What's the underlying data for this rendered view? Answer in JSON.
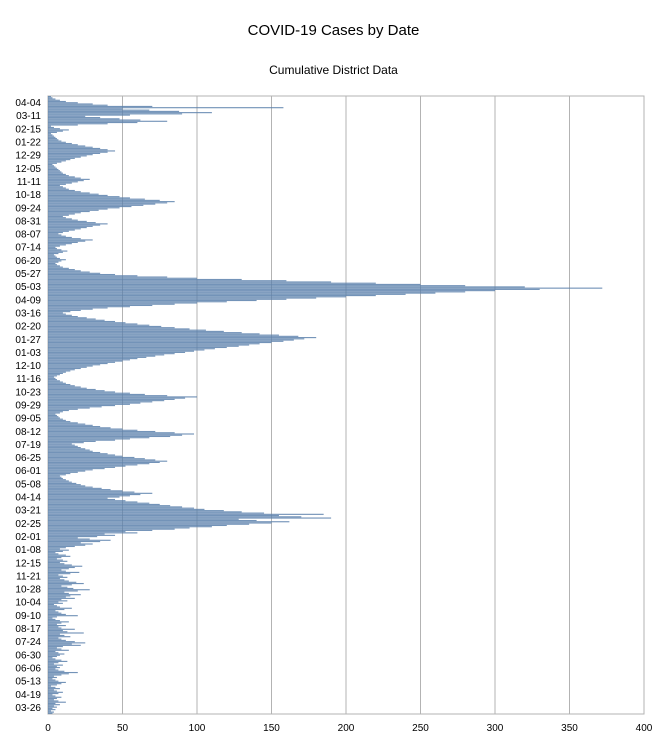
{
  "chart_data": {
    "type": "bar",
    "orientation": "horizontal",
    "title": "COVID-19 Cases by Date",
    "subtitle": "Cumulative District Data",
    "xlabel": "",
    "ylabel": "",
    "xlim": [
      0,
      400
    ],
    "x_ticks": [
      0,
      50,
      100,
      150,
      200,
      250,
      300,
      350,
      400
    ],
    "category_ticks": [
      "04-04",
      "03-11",
      "02-15",
      "01-22",
      "12-29",
      "12-05",
      "11-11",
      "10-18",
      "09-24",
      "08-31",
      "08-07",
      "07-14",
      "06-20",
      "05-27",
      "05-03",
      "04-09",
      "03-16",
      "02-20",
      "01-27",
      "01-03",
      "12-10",
      "11-16",
      "10-23",
      "09-29",
      "09-05",
      "08-12",
      "07-19",
      "06-25",
      "06-01",
      "05-08",
      "04-14",
      "03-21",
      "02-25",
      "02-01",
      "01-08",
      "12-15",
      "11-21",
      "10-28",
      "10-04",
      "09-10",
      "08-17",
      "07-24",
      "06-30",
      "06-06",
      "05-13",
      "04-19",
      "03-26"
    ],
    "grid": "vertical",
    "bar_color": "#5b80ac",
    "series": [
      {
        "values": [
          3,
          4,
          2,
          5,
          3,
          6,
          4,
          8,
          5,
          12,
          7,
          4,
          6,
          9,
          5,
          3,
          7,
          10,
          6,
          4,
          8,
          5,
          2,
          6,
          9,
          12,
          7,
          5,
          3,
          6,
          4,
          9,
          14,
          20,
          11,
          7,
          5,
          8,
          6,
          10,
          4,
          7,
          13,
          9,
          5,
          3,
          6,
          8,
          11,
          7,
          5,
          14,
          9,
          6,
          10,
          22,
          16,
          25,
          18,
          12,
          9,
          7,
          15,
          11,
          8,
          24,
          13,
          10,
          18,
          9,
          7,
          12,
          6,
          9,
          14,
          8,
          5,
          3,
          6,
          20,
          12,
          9,
          7,
          5,
          11,
          16,
          8,
          6,
          4,
          10,
          7,
          13,
          9,
          18,
          12,
          15,
          22,
          14,
          11,
          20,
          28,
          17,
          13,
          9,
          16,
          24,
          19,
          14,
          11,
          8,
          13,
          10,
          7,
          15,
          21,
          12,
          9,
          14,
          18,
          23,
          16,
          11,
          8,
          13,
          10,
          6,
          9,
          15,
          12,
          7,
          5,
          10,
          14,
          8,
          12,
          18,
          25,
          30,
          22,
          35,
          42,
          28,
          20,
          33,
          45,
          38,
          60,
          52,
          70,
          85,
          95,
          110,
          120,
          135,
          150,
          162,
          140,
          128,
          190,
          170,
          155,
          185,
          145,
          130,
          118,
          105,
          98,
          90,
          82,
          75,
          68,
          60,
          52,
          45,
          40,
          48,
          55,
          62,
          70,
          58,
          50,
          42,
          36,
          30,
          25,
          22,
          19,
          16,
          14,
          12,
          10,
          9,
          8,
          12,
          15,
          20,
          25,
          30,
          38,
          45,
          52,
          60,
          68,
          75,
          80,
          72,
          65,
          58,
          50,
          45,
          40,
          35,
          30,
          28,
          25,
          22,
          20,
          18,
          16,
          24,
          32,
          45,
          55,
          68,
          82,
          90,
          98,
          85,
          72,
          60,
          50,
          42,
          35,
          30,
          25,
          20,
          15,
          12,
          10,
          8,
          7,
          6,
          5,
          8,
          10,
          14,
          20,
          28,
          36,
          45,
          55,
          62,
          70,
          78,
          85,
          92,
          100,
          80,
          65,
          55,
          45,
          38,
          32,
          26,
          22,
          18,
          15,
          12,
          10,
          8,
          6,
          5,
          4,
          6,
          8,
          10,
          12,
          15,
          18,
          22,
          26,
          30,
          35,
          40,
          45,
          50,
          55,
          60,
          66,
          72,
          78,
          85,
          92,
          98,
          105,
          112,
          120,
          128,
          135,
          142,
          150,
          158,
          165,
          172,
          180,
          168,
          155,
          142,
          130,
          118,
          106,
          95,
          85,
          76,
          68,
          60,
          52,
          45,
          38,
          32,
          26,
          20,
          16,
          12,
          10,
          15,
          22,
          30,
          40,
          55,
          70,
          85,
          100,
          120,
          140,
          160,
          180,
          200,
          220,
          240,
          260,
          280,
          300,
          330,
          372,
          320,
          280,
          250,
          220,
          190,
          160,
          130,
          100,
          80,
          60,
          45,
          35,
          28,
          22,
          18,
          14,
          10,
          8,
          6,
          5,
          7,
          9,
          12,
          8,
          6,
          5,
          4,
          7,
          10,
          13,
          9,
          6,
          5,
          8,
          12,
          16,
          20,
          25,
          30,
          22,
          16,
          12,
          9,
          7,
          10,
          14,
          18,
          22,
          26,
          30,
          35,
          40,
          32,
          26,
          20,
          16,
          12,
          10,
          14,
          18,
          22,
          28,
          34,
          40,
          48,
          56,
          64,
          72,
          80,
          85,
          75,
          65,
          55,
          48,
          40,
          34,
          28,
          22,
          18,
          14,
          12,
          10,
          8,
          12,
          16,
          20,
          24,
          28,
          22,
          18,
          14,
          12,
          10,
          9,
          8,
          7,
          6,
          5,
          4,
          3,
          6,
          9,
          12,
          15,
          18,
          22,
          26,
          30,
          35,
          40,
          45,
          40,
          35,
          30,
          25,
          20,
          16,
          12,
          9,
          7,
          6,
          5,
          4,
          3,
          2,
          6,
          10,
          14,
          8,
          4,
          2,
          20,
          40,
          60,
          80,
          62,
          48,
          35,
          25,
          55,
          90,
          110,
          88,
          68,
          50,
          158,
          70,
          40,
          30,
          20,
          12,
          8,
          5,
          3,
          2
        ]
      }
    ]
  }
}
